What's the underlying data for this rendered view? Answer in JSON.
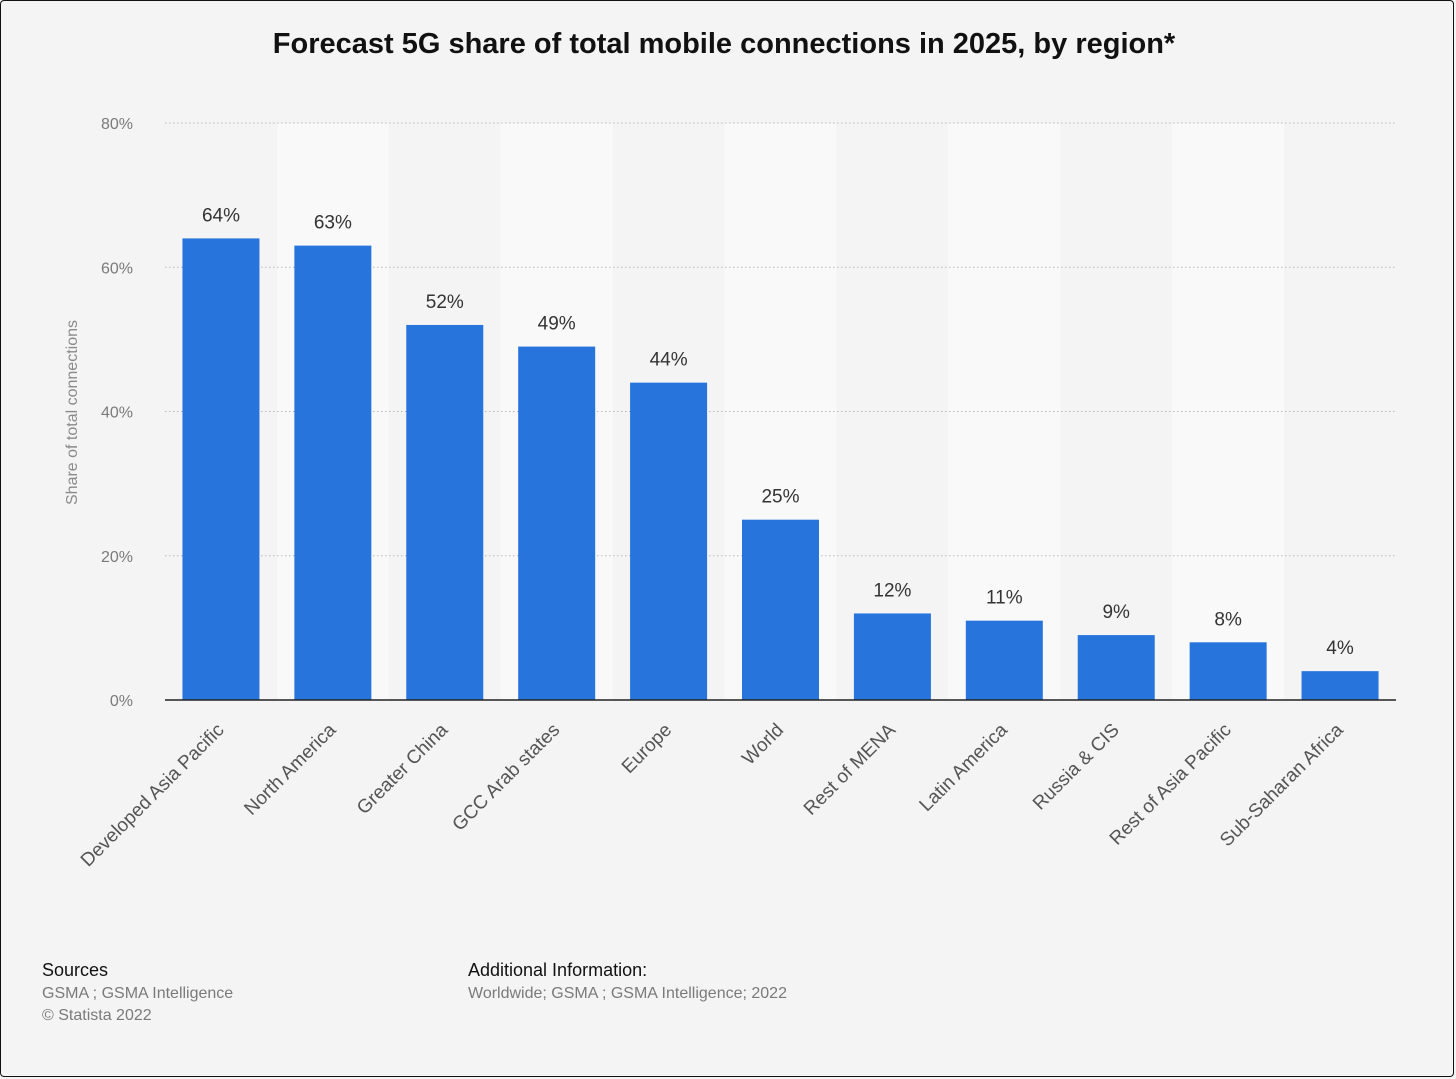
{
  "chart_data": {
    "type": "bar",
    "title": "Forecast 5G share of total mobile connections in 2025, by region*",
    "ylabel": "Share of total connections",
    "xlabel": "",
    "ylim": [
      0,
      80
    ],
    "y_ticks": [
      0,
      20,
      40,
      60,
      80
    ],
    "y_tick_labels": [
      "0%",
      "20%",
      "40%",
      "60%",
      "80%"
    ],
    "categories": [
      "Developed Asia Pacific",
      "North America",
      "Greater China",
      "GCC Arab states",
      "Europe",
      "World",
      "Rest of MENA",
      "Latin America",
      "Russia & CIS",
      "Rest of Asia Pacific",
      "Sub-Saharan Africa"
    ],
    "values": [
      64,
      63,
      52,
      49,
      44,
      25,
      12,
      11,
      9,
      8,
      4
    ],
    "value_labels": [
      "64%",
      "63%",
      "52%",
      "49%",
      "44%",
      "25%",
      "12%",
      "11%",
      "9%",
      "8%",
      "4%"
    ],
    "bar_color": "#2775dc",
    "grid": true
  },
  "footer": {
    "sources_heading": "Sources",
    "sources_line1": "GSMA ; GSMA Intelligence",
    "sources_line2": "© Statista 2022",
    "additional_heading": "Additional Information:",
    "additional_text": "Worldwide; GSMA ; GSMA Intelligence; 2022"
  }
}
